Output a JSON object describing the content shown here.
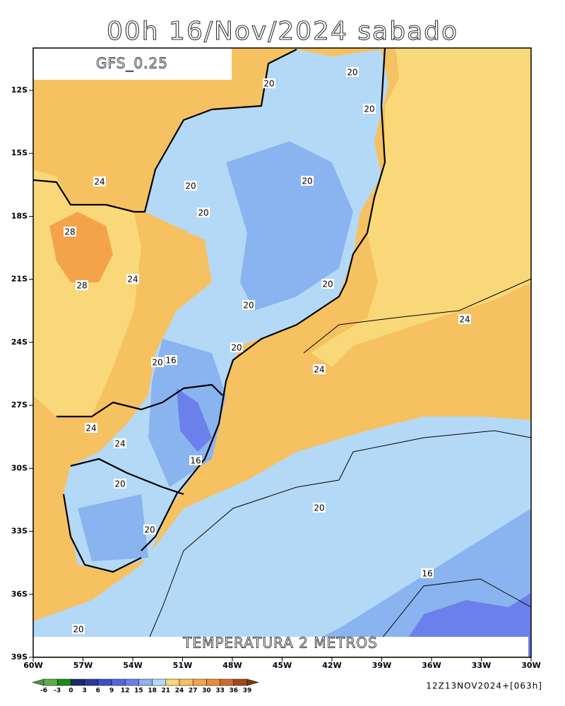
{
  "title": "00h 16/Nov/2024 sabado",
  "model_label": "GFS_0.25",
  "footer_title": "TEMPERATURA 2 METROS",
  "run_info": "12Z13NOV2024+[063h]",
  "lat_labels": [
    "12S",
    "15S",
    "18S",
    "21S",
    "24S",
    "27S",
    "30S",
    "33S",
    "36S",
    "39S"
  ],
  "lon_labels": [
    "60W",
    "57W",
    "54W",
    "51W",
    "48W",
    "45W",
    "42W",
    "39W",
    "36W",
    "33W",
    "30W"
  ],
  "contour_labels": [
    "20",
    "20",
    "20",
    "24",
    "20",
    "20",
    "20",
    "28",
    "28",
    "24",
    "20",
    "20",
    "24",
    "20",
    "20",
    "16",
    "24",
    "24",
    "24",
    "16",
    "20",
    "20",
    "20",
    "16",
    "20"
  ],
  "colorbar": {
    "labels": [
      -6,
      -3,
      0,
      3,
      6,
      9,
      12,
      15,
      18,
      21,
      24,
      27,
      30,
      33,
      36,
      39
    ],
    "colors": [
      "#4a9a3a",
      "#5fae48",
      "#1a8a1a",
      "#1a2a6a",
      "#2a3a9a",
      "#3a50c8",
      "#5068e0",
      "#6b80ea",
      "#8ab4f0",
      "#b4d9f7",
      "#f8d878",
      "#f6c160",
      "#f5a34a",
      "#f08a3a",
      "#d06a2a",
      "#a04a1a",
      "#7a3a10"
    ]
  }
}
